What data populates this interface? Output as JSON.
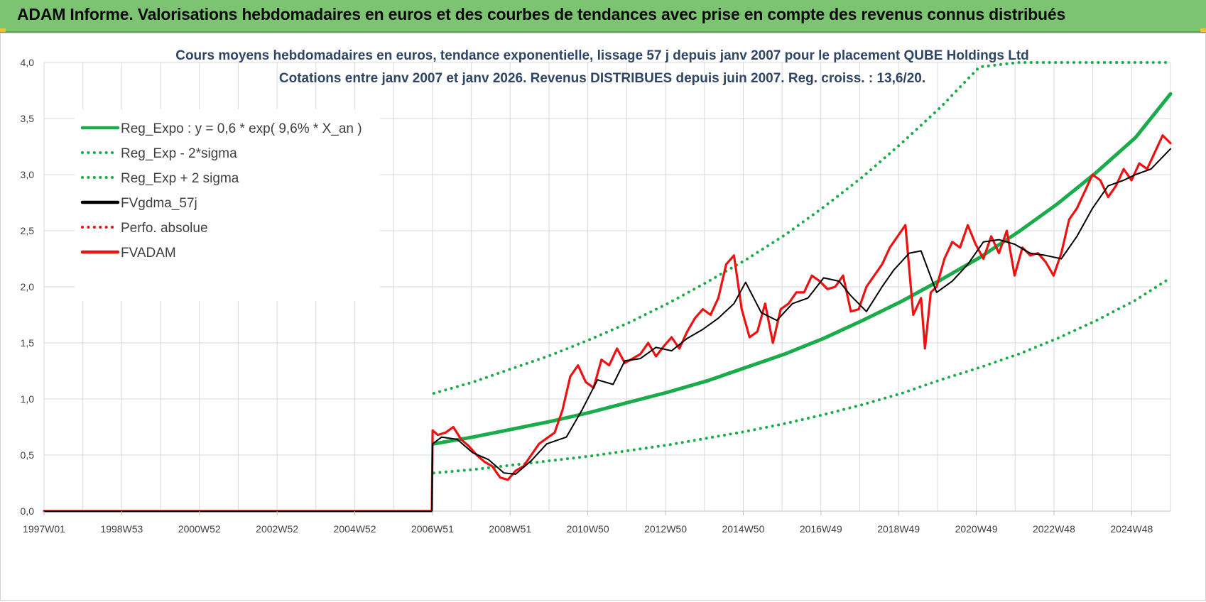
{
  "header": {
    "title": "ADAM Informe. Valorisations hebdomadaires en euros et des courbes de tendances avec prise en compte des revenus connus distribués"
  },
  "chart_data": {
    "type": "line",
    "title_lines": [
      "Cours moyens  hebdomadaires en euros, tendance exponentielle, lissage 57 j depuis janv 2007 pour le placement QUBE Holdings Ltd",
      "Cotations entre janv 2007 et janv 2026. Revenus DISTRIBUES depuis juin 2007. Reg. croiss. : 13,6/20."
    ],
    "x_tick_labels": [
      "1997W01",
      "1998W53",
      "2000W52",
      "2002W52",
      "2004W52",
      "2006W51",
      "2008W51",
      "2010W50",
      "2012W50",
      "2014W50",
      "2016W49",
      "2018W49",
      "2020W49",
      "2022W48",
      "2024W48"
    ],
    "x_range": [
      1997.0,
      2025.9
    ],
    "ylim": [
      0,
      4
    ],
    "y_ticks": [
      "0,0",
      "0,5",
      "1,0",
      "1,5",
      "2,0",
      "2,5",
      "3,0",
      "3,5",
      "4,0"
    ],
    "grid": true,
    "legend_position": "top-left",
    "colors": {
      "green": "#1aab4b",
      "black": "#000000",
      "red": "#ee1111",
      "grid": "#d9d9d9"
    },
    "series": [
      {
        "name": "Reg_Expo : y = 0,6 * exp( 9,6% *  X_an )",
        "style": "solid",
        "color": "#1aab4b",
        "x": [
          2007.0,
          2008.0,
          2009.0,
          2010.0,
          2011.0,
          2012.0,
          2013.0,
          2014.0,
          2015.0,
          2016.0,
          2017.0,
          2018.0,
          2019.0,
          2020.0,
          2021.0,
          2022.0,
          2023.0,
          2024.0,
          2025.0,
          2025.9
        ],
        "y": [
          0.6,
          0.66,
          0.73,
          0.8,
          0.88,
          0.97,
          1.06,
          1.16,
          1.28,
          1.4,
          1.54,
          1.7,
          1.87,
          2.06,
          2.26,
          2.49,
          2.74,
          3.02,
          3.33,
          3.72
        ]
      },
      {
        "name": "Reg_Exp - 2*sigma",
        "style": "dotted",
        "color": "#1aab4b",
        "x": [
          2007.0,
          2008.0,
          2009.0,
          2010.0,
          2011.0,
          2012.0,
          2013.0,
          2014.0,
          2015.0,
          2016.0,
          2017.0,
          2018.0,
          2019.0,
          2020.0,
          2021.0,
          2022.0,
          2023.0,
          2024.0,
          2025.0,
          2025.9
        ],
        "y": [
          0.34,
          0.37,
          0.41,
          0.45,
          0.49,
          0.54,
          0.59,
          0.65,
          0.71,
          0.78,
          0.86,
          0.95,
          1.05,
          1.17,
          1.28,
          1.4,
          1.54,
          1.7,
          1.88,
          2.08
        ]
      },
      {
        "name": "Reg_Exp + 2 sigma",
        "style": "dotted",
        "color": "#1aab4b",
        "x": [
          2007.0,
          2008.0,
          2009.0,
          2010.0,
          2011.0,
          2012.0,
          2013.0,
          2014.0,
          2015.0,
          2016.0,
          2017.0,
          2018.0,
          2019.0,
          2020.0,
          2021.0,
          2022.0,
          2023.0,
          2024.0,
          2025.0,
          2025.9
        ],
        "y": [
          1.05,
          1.15,
          1.27,
          1.39,
          1.53,
          1.68,
          1.85,
          2.04,
          2.24,
          2.46,
          2.71,
          2.98,
          3.28,
          3.6,
          3.96,
          4.0,
          4.0,
          4.0,
          4.0,
          4.0
        ]
      },
      {
        "name": "FVgdma_57j",
        "style": "solid",
        "color": "#000000",
        "x": [
          1997.0,
          2006.95,
          2006.97,
          2007.2,
          2007.6,
          2008.0,
          2008.4,
          2008.8,
          2009.1,
          2009.5,
          2009.9,
          2010.4,
          2010.8,
          2011.2,
          2011.6,
          2011.9,
          2012.3,
          2012.7,
          2013.1,
          2013.5,
          2013.9,
          2014.3,
          2014.7,
          2015.0,
          2015.4,
          2015.8,
          2016.2,
          2016.6,
          2017.0,
          2017.4,
          2017.7,
          2018.1,
          2018.5,
          2018.8,
          2019.2,
          2019.5,
          2019.9,
          2020.3,
          2020.7,
          2021.1,
          2021.5,
          2021.9,
          2022.3,
          2022.7,
          2023.1,
          2023.5,
          2023.9,
          2024.3,
          2024.7,
          2025.0,
          2025.4,
          2025.9
        ],
        "y": [
          0,
          0,
          0.6,
          0.66,
          0.64,
          0.52,
          0.46,
          0.34,
          0.33,
          0.45,
          0.6,
          0.66,
          0.9,
          1.17,
          1.13,
          1.34,
          1.36,
          1.46,
          1.43,
          1.54,
          1.62,
          1.72,
          1.85,
          2.04,
          1.77,
          1.7,
          1.85,
          1.9,
          2.08,
          2.05,
          1.92,
          1.78,
          2.0,
          2.15,
          2.3,
          2.32,
          1.95,
          2.05,
          2.2,
          2.4,
          2.42,
          2.38,
          2.3,
          2.28,
          2.25,
          2.45,
          2.7,
          2.9,
          2.95,
          3.0,
          3.05,
          3.23
        ]
      },
      {
        "name": "Perfo. absolue",
        "style": "dotted",
        "color": "#ee1111",
        "x": [],
        "y": []
      },
      {
        "name": "FVADAM",
        "style": "solid",
        "color": "#ee1111",
        "x": [
          1997.0,
          2006.95,
          2006.97,
          2007.1,
          2007.3,
          2007.5,
          2007.7,
          2007.9,
          2008.1,
          2008.3,
          2008.5,
          2008.7,
          2008.9,
          2009.1,
          2009.3,
          2009.5,
          2009.7,
          2009.9,
          2010.1,
          2010.3,
          2010.5,
          2010.7,
          2010.9,
          2011.1,
          2011.3,
          2011.5,
          2011.7,
          2011.9,
          2012.1,
          2012.3,
          2012.5,
          2012.7,
          2012.9,
          2013.1,
          2013.3,
          2013.5,
          2013.7,
          2013.9,
          2014.1,
          2014.3,
          2014.5,
          2014.7,
          2014.9,
          2015.1,
          2015.3,
          2015.5,
          2015.7,
          2015.9,
          2016.1,
          2016.3,
          2016.5,
          2016.7,
          2016.9,
          2017.1,
          2017.3,
          2017.5,
          2017.7,
          2017.9,
          2018.1,
          2018.3,
          2018.5,
          2018.7,
          2018.9,
          2019.1,
          2019.3,
          2019.5,
          2019.6,
          2019.75,
          2019.9,
          2020.1,
          2020.3,
          2020.5,
          2020.7,
          2020.9,
          2021.1,
          2021.3,
          2021.5,
          2021.7,
          2021.9,
          2022.1,
          2022.3,
          2022.5,
          2022.7,
          2022.9,
          2023.1,
          2023.3,
          2023.5,
          2023.7,
          2023.9,
          2024.1,
          2024.3,
          2024.5,
          2024.7,
          2024.9,
          2025.1,
          2025.3,
          2025.5,
          2025.7,
          2025.9
        ],
        "y": [
          0,
          0,
          0.72,
          0.68,
          0.7,
          0.75,
          0.64,
          0.58,
          0.5,
          0.44,
          0.4,
          0.3,
          0.28,
          0.36,
          0.4,
          0.5,
          0.6,
          0.65,
          0.7,
          0.9,
          1.2,
          1.3,
          1.15,
          1.1,
          1.35,
          1.3,
          1.45,
          1.32,
          1.36,
          1.4,
          1.5,
          1.38,
          1.47,
          1.55,
          1.45,
          1.6,
          1.72,
          1.8,
          1.75,
          1.9,
          2.2,
          2.28,
          1.8,
          1.55,
          1.6,
          1.85,
          1.5,
          1.8,
          1.85,
          1.95,
          1.95,
          2.1,
          2.05,
          1.98,
          2.0,
          2.1,
          1.78,
          1.8,
          2.0,
          2.1,
          2.2,
          2.35,
          2.45,
          2.55,
          1.75,
          1.9,
          1.45,
          1.95,
          2.0,
          2.25,
          2.4,
          2.35,
          2.55,
          2.38,
          2.25,
          2.45,
          2.3,
          2.5,
          2.1,
          2.35,
          2.28,
          2.3,
          2.22,
          2.1,
          2.3,
          2.6,
          2.7,
          2.85,
          3.0,
          2.95,
          2.8,
          2.9,
          3.05,
          2.95,
          3.1,
          3.05,
          3.2,
          3.35,
          3.28
        ]
      }
    ]
  }
}
